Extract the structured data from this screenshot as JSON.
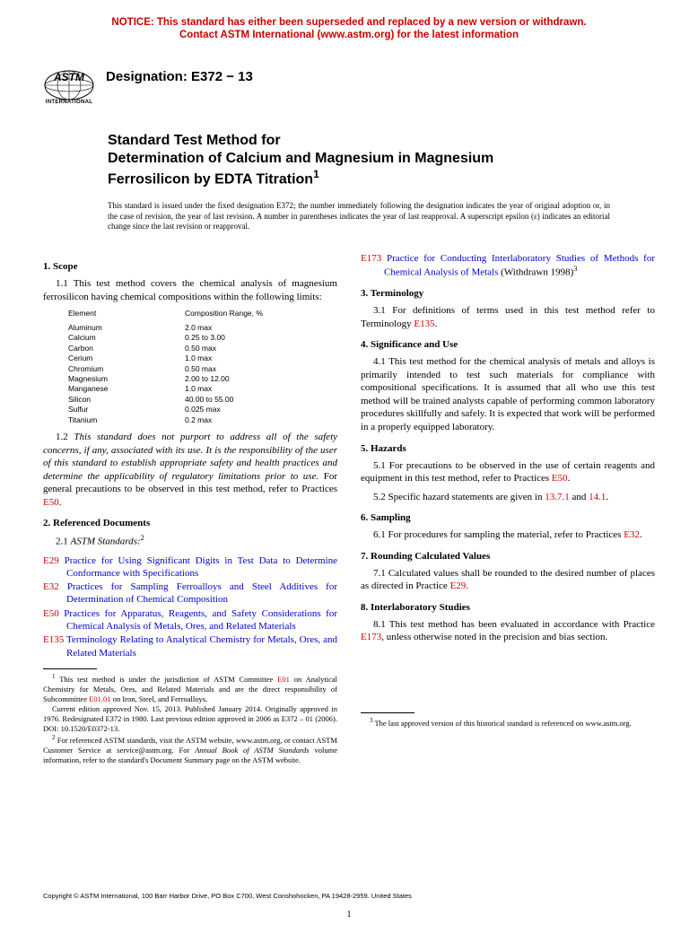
{
  "notice": {
    "line1": "NOTICE: This standard has either been superseded and replaced by a new version or withdrawn.",
    "line2": "Contact ASTM International (www.astm.org) for the latest information"
  },
  "logo": {
    "subtext": "INTERNATIONAL"
  },
  "designation": "Designation: E372 − 13",
  "title": {
    "line1": "Standard Test Method for",
    "line2": "Determination of Calcium and Magnesium in Magnesium",
    "line3": "Ferrosilicon by EDTA Titration"
  },
  "issuance": "This standard is issued under the fixed designation E372; the number immediately following the designation indicates the year of original adoption or, in the case of revision, the year of last revision. A number in parentheses indicates the year of last reapproval. A superscript epsilon (ε) indicates an editorial change since the last revision or reapproval.",
  "sections": {
    "scope": {
      "head": "1. Scope",
      "p1": "1.1 This test method covers the chemical analysis of magnesium ferrosilicon having chemical compositions within the following limits:",
      "table": {
        "header": {
          "c1": "Element",
          "c2": "Composition Range, %"
        },
        "rows": [
          {
            "c1": "Aluminum",
            "c2": "2.0 max"
          },
          {
            "c1": "Calcium",
            "c2": "0.25 to 3.00"
          },
          {
            "c1": "Carbon",
            "c2": "0.50 max"
          },
          {
            "c1": "Cerium",
            "c2": "1.0 max"
          },
          {
            "c1": "Chromium",
            "c2": "0.50 max"
          },
          {
            "c1": "Magnesium",
            "c2": "2.00 to 12.00"
          },
          {
            "c1": "Manganese",
            "c2": "1.0 max"
          },
          {
            "c1": "Silicon",
            "c2": "40.00 to 55.00"
          },
          {
            "c1": "Sulfur",
            "c2": "0.025 max"
          },
          {
            "c1": "Titanium",
            "c2": "0.2 max"
          }
        ]
      },
      "p2a": "1.2 ",
      "p2b": "This standard does not purport to address all of the safety concerns, if any, associated with its use. It is the responsibility of the user of this standard to establish appropriate safety and health practices and determine the applicability of regulatory limitations prior to use.",
      "p2c": " For general precautions to be observed in this test method, refer to Practices ",
      "p2d": "E50",
      "p2e": "."
    },
    "refdocs": {
      "head": "2. Referenced Documents",
      "p1a": "2.1 ",
      "p1b": "ASTM Standards:",
      "items": [
        {
          "code": "E29",
          "title": "Practice for Using Significant Digits in Test Data to Determine Conformance with Specifications"
        },
        {
          "code": "E32",
          "title": "Practices for Sampling Ferroalloys and Steel Additives for Determination of Chemical Composition"
        },
        {
          "code": "E50",
          "title": "Practices for Apparatus, Reagents, and Safety Considerations for Chemical Analysis of Metals, Ores, and Related Materials"
        },
        {
          "code": "E135",
          "title": "Terminology Relating to Analytical Chemistry for Metals, Ores, and Related Materials"
        }
      ]
    },
    "e173": {
      "code": "E173",
      "title": "Practice for Conducting Interlaboratory Studies of Methods for Chemical Analysis of Metals",
      "suffix": " (Withdrawn 1998)"
    },
    "terminology": {
      "head": "3. Terminology",
      "p1a": "3.1 For definitions of terms used in this test method refer to Terminology ",
      "p1b": "E135",
      "p1c": "."
    },
    "significance": {
      "head": "4. Significance and Use",
      "p1": "4.1 This test method for the chemical analysis of metals and alloys is primarily intended to test such materials for compliance with compositional specifications. It is assumed that all who use this test method will be trained analysts capable of performing common laboratory procedures skillfully and safely. It is expected that work will be performed in a properly equipped laboratory."
    },
    "hazards": {
      "head": "5. Hazards",
      "p1a": "5.1 For precautions to be observed in the use of certain reagents and equipment in this test method, refer to Practices ",
      "p1b": "E50",
      "p1c": ".",
      "p2a": "5.2 Specific hazard statements are given in ",
      "p2b": "13.7.1",
      "p2c": " and ",
      "p2d": "14.1",
      "p2e": "."
    },
    "sampling": {
      "head": "6. Sampling",
      "p1a": "6.1 For procedures for sampling the material, refer to Practices ",
      "p1b": "E32",
      "p1c": "."
    },
    "rounding": {
      "head": "7. Rounding Calculated Values",
      "p1a": "7.1 Calculated values shall be rounded to the desired number of places as directed in Practice ",
      "p1b": "E29",
      "p1c": "."
    },
    "interlab": {
      "head": "8. Interlaboratory Studies",
      "p1a": "8.1 This test method has been evaluated in accordance with Practice ",
      "p1b": "E173",
      "p1c": ", unless otherwise noted in the precision and bias section."
    }
  },
  "footnotes": {
    "left": {
      "f1a": " This test method is under the jurisdiction of ASTM Committee ",
      "f1b": "E01",
      "f1c": " on Analytical Chemistry for Metals, Ores, and Related Materials and are the direct responsibility of Subcommittee ",
      "f1d": "E01.01",
      "f1e": " on Iron, Steel, and Ferroalloys.",
      "f1f": "Current edition approved Nov. 15, 2013. Published January 2014. Originally approved in 1976. Redesignated E372 in 1980. Last previous edition approved in 2006 as E372 – 01 (2006). DOI: 10.1520/E0372-13.",
      "f2a": " For referenced ASTM standards, visit the ASTM website, www.astm.org, or contact ASTM Customer Service at service@astm.org. For ",
      "f2b": "Annual Book of ASTM Standards",
      "f2c": " volume information, refer to the standard's Document Summary page on the ASTM website."
    },
    "right": {
      "f3": " The last approved version of this historical standard is referenced on www.astm.org."
    }
  },
  "copyright": "Copyright © ASTM International, 100 Barr Harbor Drive, PO Box C700, West Conshohocken, PA 19428-2959. United States",
  "pagenum": "1",
  "colors": {
    "notice": "#cc0000",
    "ref_code": "#cc0000",
    "ref_title": "#0000cc",
    "text": "#000000",
    "bg": "#ffffff"
  }
}
